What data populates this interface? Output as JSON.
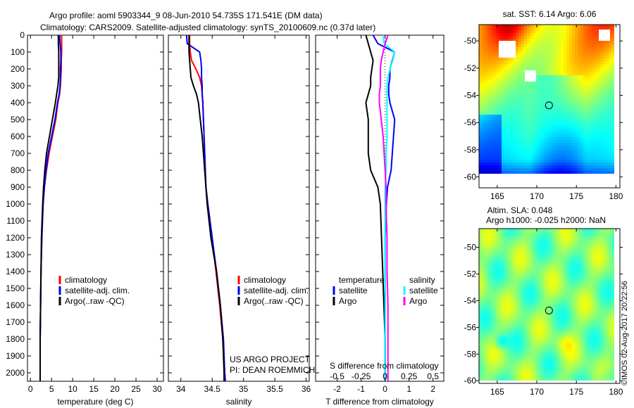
{
  "title_line1": "Argo profile: aoml 5903344_9 08-Jun-2010 54.735S 171.541E (DM data)",
  "title_line2": "Climatology: CARS2009. Satellite-adjusted climatology: synTS_20100609.nc (0.37d later)",
  "project_line1": "US ARGO PROJECT",
  "project_line2": "PI: DEAN ROEMMICH",
  "timestamp": "©IMOS 02-Aug-2017 20:22:56",
  "colors": {
    "climatology": "#ff0000",
    "satellite": "#0000ff",
    "argo": "#000000",
    "sal_satellite": "#00ffff",
    "sal_argo": "#ff00ff"
  },
  "chart_data": [
    {
      "type": "line",
      "id": "temperature",
      "xlabel": "temperature (deg C)",
      "ylabel": "",
      "xlim": [
        -0.7,
        31.5
      ],
      "ylim": [
        2050,
        0
      ],
      "xticks": [
        "0",
        "5",
        "10",
        "15",
        "20",
        "25",
        "30"
      ],
      "yticks": [
        "0",
        "100",
        "200",
        "300",
        "400",
        "500",
        "600",
        "700",
        "800",
        "900",
        "1000",
        "1100",
        "1200",
        "1300",
        "1400",
        "1500",
        "1600",
        "1700",
        "1800",
        "1900",
        "2000"
      ],
      "depth": [
        0,
        50,
        100,
        150,
        200,
        250,
        300,
        350,
        400,
        500,
        600,
        700,
        800,
        900,
        1000,
        1200,
        1400,
        1600,
        1800,
        2000,
        2050
      ],
      "legend": [
        "climatology",
        "satellite-adj. clim.",
        "Argo(..raw -QC)"
      ],
      "series": [
        {
          "name": "climatology",
          "values": [
            7.4,
            7.4,
            7.4,
            7.3,
            7.3,
            7.2,
            7.1,
            6.9,
            6.5,
            6.0,
            5.2,
            4.4,
            3.8,
            3.3,
            3.0,
            2.7,
            2.5,
            2.4,
            2.3,
            2.3,
            2.3
          ]
        },
        {
          "name": "satellite-adj. clim.",
          "values": [
            6.9,
            7.0,
            7.2,
            7.2,
            7.1,
            7.1,
            7.0,
            6.8,
            6.4,
            5.8,
            5.0,
            4.2,
            3.7,
            3.3,
            3.0,
            2.7,
            2.5,
            2.4,
            2.3,
            2.3,
            2.3
          ]
        },
        {
          "name": "Argo(..raw -QC)",
          "values": [
            6.6,
            6.6,
            6.7,
            6.7,
            6.7,
            6.7,
            6.5,
            6.2,
            5.9,
            5.2,
            4.5,
            3.8,
            3.4,
            3.1,
            2.9,
            2.6,
            2.5,
            2.4,
            2.3,
            2.3,
            2.3
          ]
        }
      ]
    },
    {
      "type": "line",
      "id": "salinity",
      "xlabel": "salinity",
      "xlim": [
        33.8,
        36.05
      ],
      "ylim": [
        2050,
        0
      ],
      "xticks": [
        "34",
        "34.5",
        "35",
        "35.5",
        "36"
      ],
      "depth": [
        0,
        50,
        100,
        150,
        200,
        250,
        300,
        350,
        400,
        500,
        600,
        700,
        800,
        900,
        1000,
        1200,
        1400,
        1600,
        1800,
        2000,
        2050
      ],
      "legend": [
        "climatology",
        "satellite-adj. clim.",
        "Argo(..raw -QC)"
      ],
      "series": [
        {
          "name": "climatology",
          "values": [
            34.14,
            34.14,
            34.15,
            34.17,
            34.24,
            34.3,
            34.33,
            34.34,
            34.35,
            34.36,
            34.37,
            34.38,
            34.39,
            34.4,
            34.43,
            34.5,
            34.56,
            34.62,
            34.67,
            34.7,
            34.71
          ]
        },
        {
          "name": "satellite-adj. clim.",
          "values": [
            34.09,
            34.1,
            34.3,
            34.32,
            34.33,
            34.33,
            34.34,
            34.34,
            34.35,
            34.36,
            34.37,
            34.38,
            34.39,
            34.4,
            34.43,
            34.5,
            34.57,
            34.63,
            34.68,
            34.7,
            34.71
          ]
        },
        {
          "name": "Argo(..raw -QC)",
          "values": [
            34.13,
            34.13,
            34.13,
            34.14,
            34.15,
            34.16,
            34.2,
            34.25,
            34.28,
            34.31,
            34.34,
            34.36,
            34.38,
            34.4,
            34.42,
            34.48,
            34.57,
            34.63,
            34.67,
            34.69,
            34.69
          ]
        }
      ]
    },
    {
      "type": "line",
      "id": "differences",
      "xlabel": "T difference from climatology",
      "xlabel2": "S difference from climatology",
      "xlim": [
        -2.9,
        2.45
      ],
      "ylim": [
        2050,
        0
      ],
      "xticks": [
        "-2",
        "-1",
        "0",
        "1",
        "2"
      ],
      "xticks2": [
        "-0.5",
        "-0.25",
        "0",
        "0.25",
        "0.5"
      ],
      "legend_t_title": "temperature",
      "legend_s_title": "salinity",
      "legend": [
        "satellite",
        "Argo",
        "satellite",
        "Argo"
      ],
      "depth": [
        0,
        50,
        100,
        150,
        200,
        250,
        300,
        350,
        400,
        500,
        600,
        700,
        800,
        900,
        1000,
        1200,
        1400,
        1600,
        1800,
        2000,
        2050
      ],
      "series": [
        {
          "name": "T satellite",
          "values": [
            -0.5,
            -0.3,
            0.4,
            0.3,
            0.2,
            0.2,
            0.15,
            0.15,
            0.2,
            0.4,
            0.35,
            0.3,
            0.25,
            0.1,
            0.05,
            0.0,
            0.0,
            0.0,
            0.0,
            0.0,
            0.0
          ]
        },
        {
          "name": "T Argo",
          "values": [
            -0.8,
            -0.7,
            -0.6,
            -0.5,
            -0.55,
            -0.6,
            -0.6,
            -0.7,
            -0.8,
            -0.7,
            -0.7,
            -0.7,
            -0.6,
            -0.3,
            -0.2,
            -0.15,
            -0.1,
            -0.05,
            0.0,
            0.0,
            0.0
          ]
        },
        {
          "name": "S satellite",
          "values": [
            -0.02,
            -0.01,
            0.1,
            0.08,
            0.05,
            0.03,
            0.02,
            0.02,
            0.02,
            0.02,
            0.02,
            0.01,
            0.01,
            0.0,
            0.0,
            0.0,
            0.0,
            0.0,
            0.0,
            0.0,
            0.0
          ]
        },
        {
          "name": "S Argo",
          "values": [
            0.03,
            0.0,
            -0.02,
            -0.04,
            -0.05,
            -0.05,
            -0.05,
            -0.06,
            -0.06,
            -0.04,
            -0.02,
            -0.01,
            0.0,
            0.01,
            0.01,
            0.02,
            0.02,
            0.03,
            0.03,
            0.03,
            0.03
          ]
        }
      ]
    },
    {
      "type": "heatmap",
      "id": "sst-map",
      "title": "sat. SST: 6.14 Argo: 6.06",
      "xlim": [
        162.7,
        180.5
      ],
      "ylim": [
        -60.8,
        -48.8
      ],
      "xticks": [
        "165",
        "170",
        "175",
        "180"
      ],
      "yticks": [
        "-50",
        "-52",
        "-54",
        "-56",
        "-58",
        "-60"
      ],
      "marker": {
        "lon": 171.541,
        "lat": -54.735
      }
    },
    {
      "type": "heatmap",
      "id": "sla-map",
      "title_line1": "Altim. SLA: 0.048",
      "title_line2": "Argo h1000: -0.025 h2000: NaN",
      "xlim": [
        162.7,
        180.5
      ],
      "ylim": [
        -60.2,
        -48.6
      ],
      "xticks": [
        "165",
        "170",
        "175",
        "180"
      ],
      "yticks": [
        "-50",
        "-52",
        "-54",
        "-56",
        "-58",
        "-60"
      ],
      "marker": {
        "lon": 171.541,
        "lat": -54.735
      }
    }
  ]
}
